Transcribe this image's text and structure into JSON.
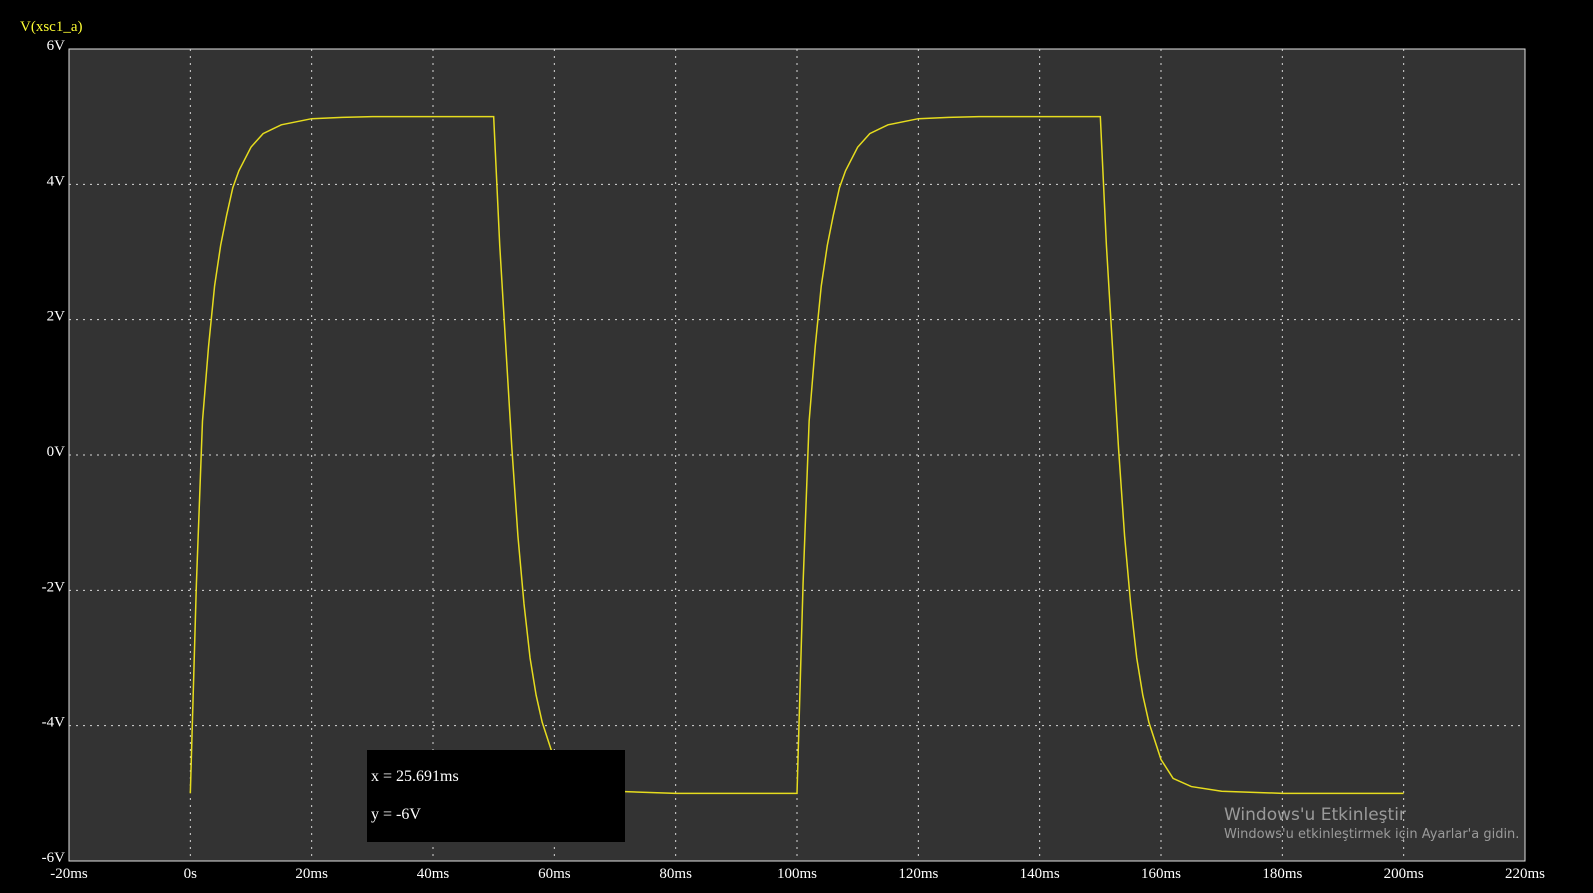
{
  "chart_data": {
    "type": "line",
    "title": "V(xsc1_a)",
    "xlabel": "",
    "ylabel": "",
    "xlim": [
      -20,
      220
    ],
    "ylim": [
      -6,
      6
    ],
    "x_unit": "ms",
    "y_unit": "V",
    "x_ticks": [
      "-20ms",
      "0s",
      "20ms",
      "40ms",
      "60ms",
      "80ms",
      "100ms",
      "120ms",
      "140ms",
      "160ms",
      "180ms",
      "200ms",
      "220ms"
    ],
    "y_ticks": [
      "6V",
      "4V",
      "2V",
      "0V",
      "-2V",
      "-4V",
      "-6V"
    ],
    "x_tick_values": [
      -20,
      0,
      20,
      40,
      60,
      80,
      100,
      120,
      140,
      160,
      180,
      200,
      220
    ],
    "y_tick_values": [
      6,
      4,
      2,
      0,
      -2,
      -4,
      -6
    ],
    "grid": true,
    "legend": "none",
    "colors": {
      "background": "#000000",
      "plot_area": "#333333",
      "trace": "#e6dc1e",
      "grid": "#d8d8d8",
      "title": "#ffff33"
    },
    "series": [
      {
        "x": [
          0,
          1,
          2,
          3,
          4,
          5,
          6,
          7,
          8,
          10,
          12,
          15,
          20,
          25,
          30,
          40,
          50,
          51,
          52,
          53,
          54,
          55,
          56,
          57,
          58,
          60,
          62,
          65,
          70,
          80,
          90,
          100,
          100.001,
          101,
          102,
          103,
          104,
          105,
          106,
          107,
          108,
          110,
          112,
          115,
          120,
          125,
          130,
          140,
          150,
          151,
          152,
          153,
          154,
          155,
          156,
          157,
          158,
          160,
          162,
          165,
          170,
          180,
          190,
          200
        ],
        "y": [
          -5,
          -1.9,
          0.5,
          1.6,
          2.5,
          3.1,
          3.55,
          3.95,
          4.2,
          4.55,
          4.75,
          4.88,
          4.97,
          4.99,
          5,
          5,
          5,
          3.1,
          1.6,
          0.1,
          -1.2,
          -2.2,
          -3,
          -3.55,
          -3.95,
          -4.5,
          -4.78,
          -4.9,
          -4.97,
          -5,
          -5,
          -5,
          -5,
          -1.9,
          0.5,
          1.6,
          2.5,
          3.1,
          3.55,
          3.95,
          4.2,
          4.55,
          4.75,
          4.88,
          4.97,
          4.99,
          5,
          5,
          5,
          3.1,
          1.6,
          0.1,
          -1.2,
          -2.2,
          -3,
          -3.55,
          -3.95,
          -4.5,
          -4.78,
          -4.9,
          -4.97,
          -5,
          -5,
          -5
        ]
      }
    ]
  },
  "cursor": {
    "x_label": "x = 25.691ms",
    "y_label": "y = -6V"
  },
  "watermark": {
    "title": "Windows'u Etkinleştir",
    "subtitle": "Windows'u etkinleştirmek için Ayarlar'a gidin."
  }
}
